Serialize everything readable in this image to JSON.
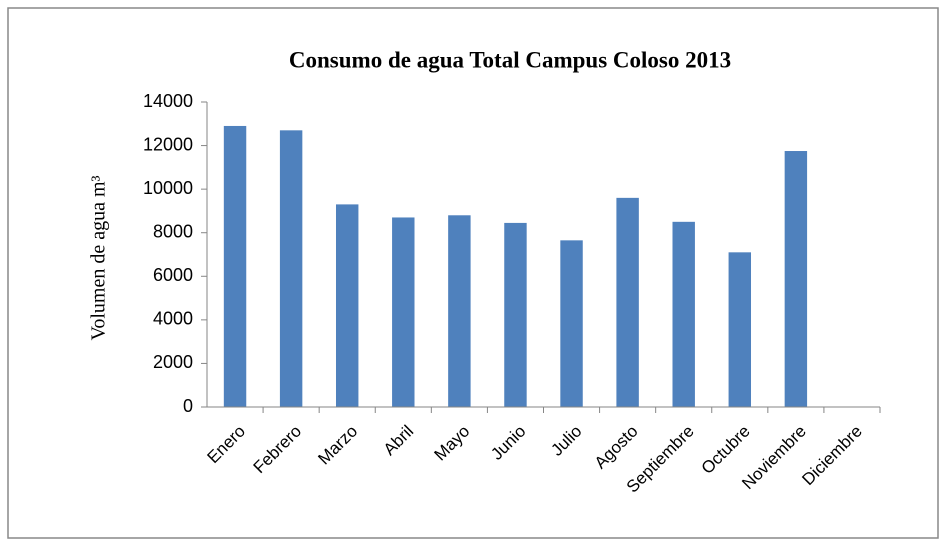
{
  "chart_data": {
    "type": "bar",
    "title": "Consumo de agua Total Campus Coloso 2013",
    "ylabel": "Volumen de agua  m³",
    "categories": [
      "Enero",
      "Febrero",
      "Marzo",
      "Abril",
      "Mayo",
      "Junio",
      "Julio",
      "Agosto",
      "Septiembre",
      "Octubre",
      "Noviembre",
      "Diciembre"
    ],
    "values": [
      12900,
      12700,
      9300,
      8700,
      8800,
      8450,
      7650,
      9600,
      8500,
      7100,
      11750,
      null
    ],
    "color": "#4f81bd",
    "ylim": [
      0,
      14000
    ],
    "yticks": [
      0,
      2000,
      4000,
      6000,
      8000,
      10000,
      12000,
      14000
    ],
    "grid": false
  }
}
